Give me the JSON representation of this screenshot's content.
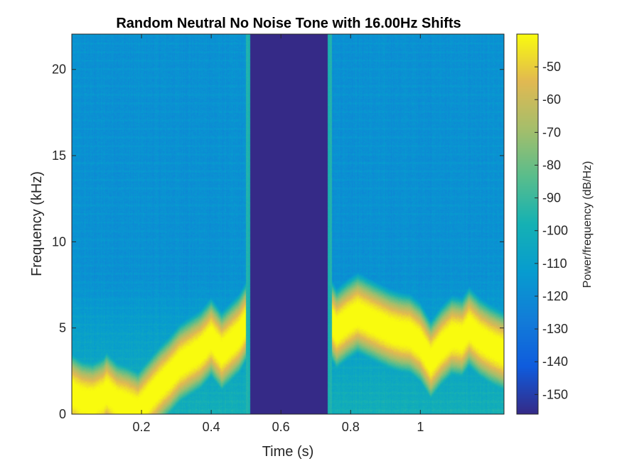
{
  "chart_data": {
    "type": "heatmap",
    "title": "Random Neutral No Noise Tone with 16.00Hz Shifts",
    "xlabel": "Time (s)",
    "ylabel": "Frequency (kHz)",
    "colorbar_label": "Power/frequency (dB/Hz)",
    "colormap": "parula",
    "xlim": [
      0.0,
      1.24
    ],
    "ylim": [
      0,
      22.05
    ],
    "clim": [
      -156,
      -40
    ],
    "x_ticks": [
      0.2,
      0.4,
      0.6,
      0.8,
      1
    ],
    "x_tick_labels": [
      "0.2",
      "0.4",
      "0.6",
      "0.8",
      "1"
    ],
    "y_ticks": [
      0,
      5,
      10,
      15,
      20
    ],
    "y_tick_labels": [
      "0",
      "5",
      "10",
      "15",
      "20"
    ],
    "colorbar_ticks": [
      -50,
      -60,
      -70,
      -80,
      -90,
      -100,
      -110,
      -120,
      -130,
      -140,
      -150
    ],
    "colorbar_tick_labels": [
      "-50",
      "-60",
      "-70",
      "-80",
      "-90",
      "-100",
      "-110",
      "-120",
      "-130",
      "-140",
      "-150"
    ],
    "background_level_db": -118,
    "low_frequency_level_db": -100,
    "silent_gap": {
      "t_start": 0.505,
      "t_end": 0.74,
      "level_db": -156
    },
    "gap_edges_level_db": -95,
    "tone_peak_level_db": -40,
    "tone_track": {
      "time_s": [
        0.0,
        0.03,
        0.06,
        0.09,
        0.1,
        0.13,
        0.16,
        0.19,
        0.22,
        0.25,
        0.28,
        0.31,
        0.34,
        0.37,
        0.4,
        0.43,
        0.46,
        0.48,
        0.5,
        0.505,
        0.745,
        0.76,
        0.79,
        0.82,
        0.85,
        0.88,
        0.91,
        0.94,
        0.97,
        1.0,
        1.03,
        1.06,
        1.09,
        1.12,
        1.14,
        1.17,
        1.2,
        1.24
      ],
      "frequency_khz": [
        1.2,
        0.8,
        0.7,
        1.0,
        1.3,
        0.7,
        0.5,
        0.2,
        0.9,
        1.6,
        2.2,
        2.9,
        3.3,
        3.7,
        4.4,
        3.6,
        4.2,
        4.6,
        5.3,
        6.0,
        5.4,
        4.9,
        5.4,
        5.8,
        5.5,
        5.2,
        4.9,
        4.7,
        4.6,
        4.1,
        3.1,
        3.9,
        4.5,
        4.4,
        5.0,
        4.4,
        4.0,
        3.6
      ]
    }
  }
}
